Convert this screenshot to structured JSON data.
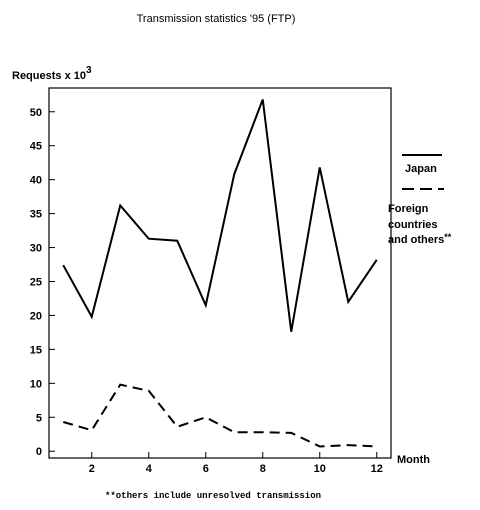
{
  "chart_data": {
    "type": "line",
    "title": "Transmission statistics '95 (FTP)",
    "ylabel": "Requests  x 10",
    "ylabel_exponent": "3",
    "xlabel": "Month",
    "x": [
      1,
      2,
      3,
      4,
      5,
      6,
      7,
      8,
      9,
      10,
      11,
      12
    ],
    "xticks": [
      2,
      4,
      6,
      8,
      10,
      12
    ],
    "yticks": [
      0,
      5,
      10,
      15,
      20,
      25,
      30,
      35,
      40,
      45,
      50
    ],
    "xlim": [
      0.5,
      12.5
    ],
    "ylim": [
      -1,
      53.5
    ],
    "grid": false,
    "legend_position": "right",
    "series": [
      {
        "name": "Japan",
        "style": "solid",
        "values": [
          27.4,
          19.8,
          36.2,
          31.3,
          31.0,
          21.5,
          40.8,
          51.8,
          17.6,
          41.8,
          22.0,
          28.2
        ]
      },
      {
        "name": "Foreign countries and others",
        "name_suffix": "**",
        "style": "dashed",
        "values": [
          4.3,
          3.1,
          9.8,
          8.9,
          3.6,
          5.0,
          2.8,
          2.8,
          2.7,
          0.7,
          0.9,
          0.7
        ]
      }
    ],
    "footnote": "**others include unresolved transmission"
  }
}
